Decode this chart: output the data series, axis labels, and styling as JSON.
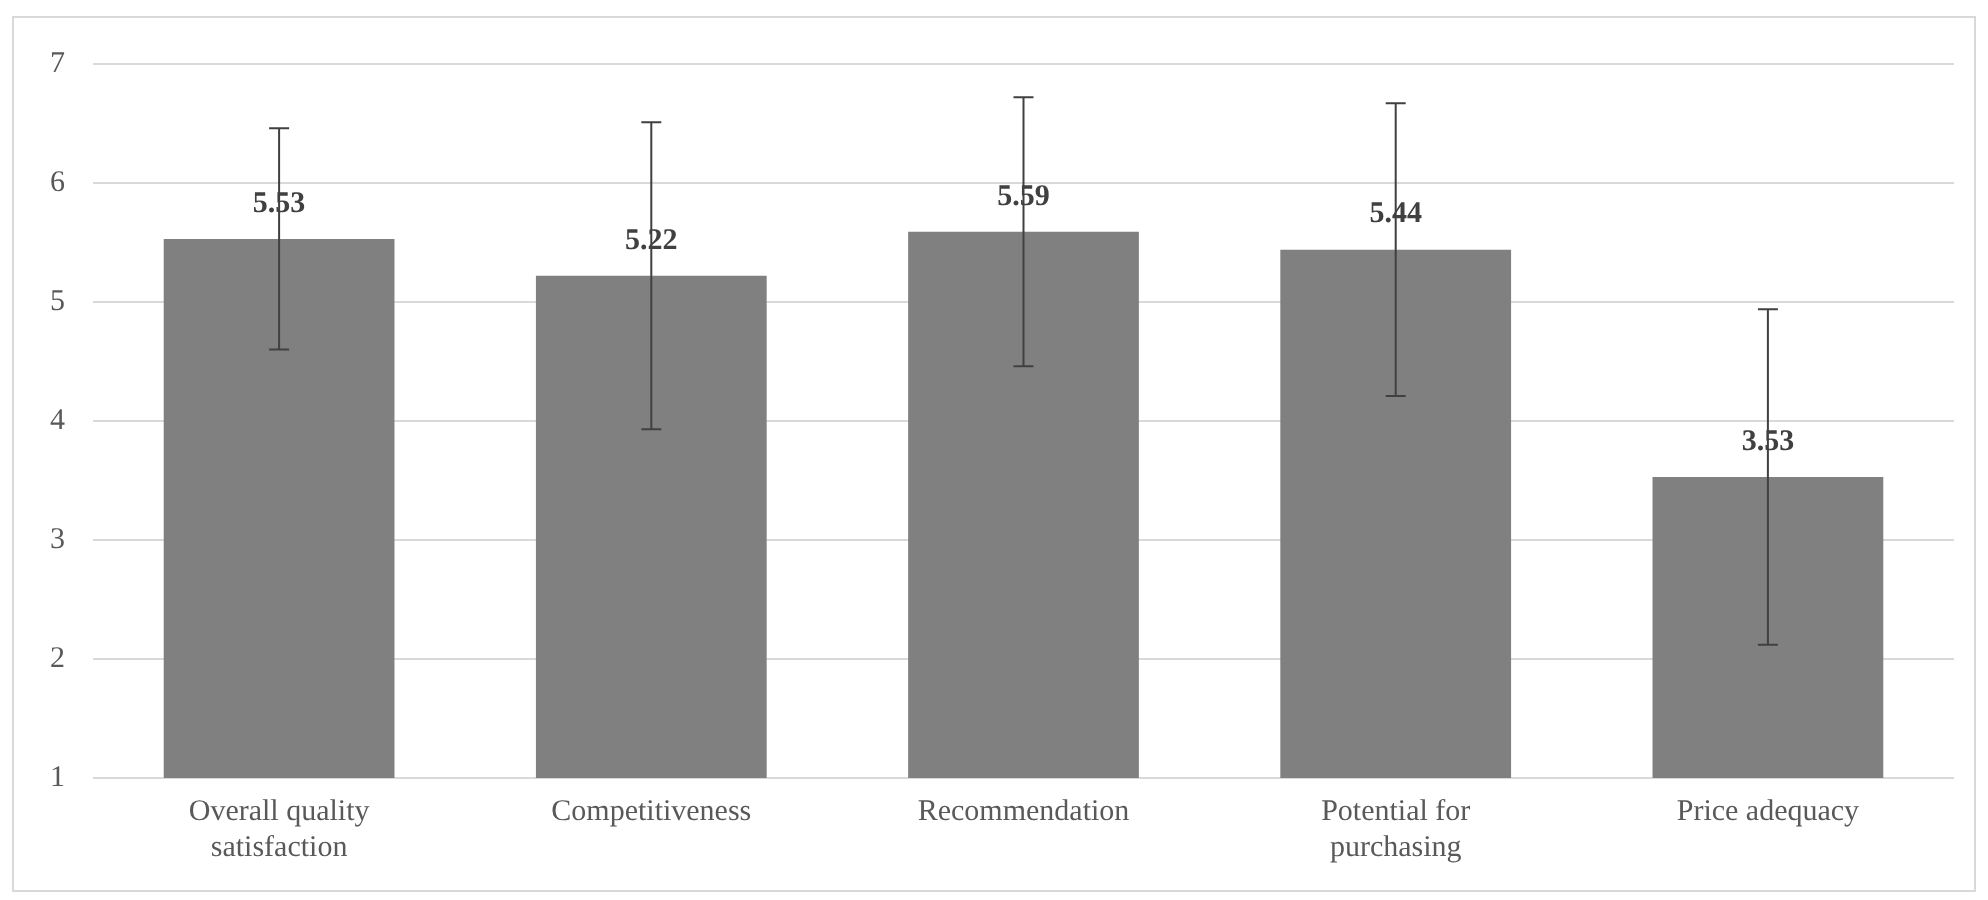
{
  "chart_data": {
    "type": "bar",
    "categories": [
      "Overall quality satisfaction",
      "Competitiveness",
      "Recommendation",
      "Potential for purchasing",
      "Price adequacy"
    ],
    "values": [
      5.53,
      5.22,
      5.59,
      5.44,
      3.53
    ],
    "errors": [
      0.93,
      1.29,
      1.13,
      1.23,
      1.41
    ],
    "color": "#808080",
    "ylim": [
      1,
      7
    ],
    "yticks": [
      1,
      2,
      3,
      4,
      5,
      6,
      7
    ],
    "grid": "y",
    "legend": false,
    "data_labels": true
  }
}
